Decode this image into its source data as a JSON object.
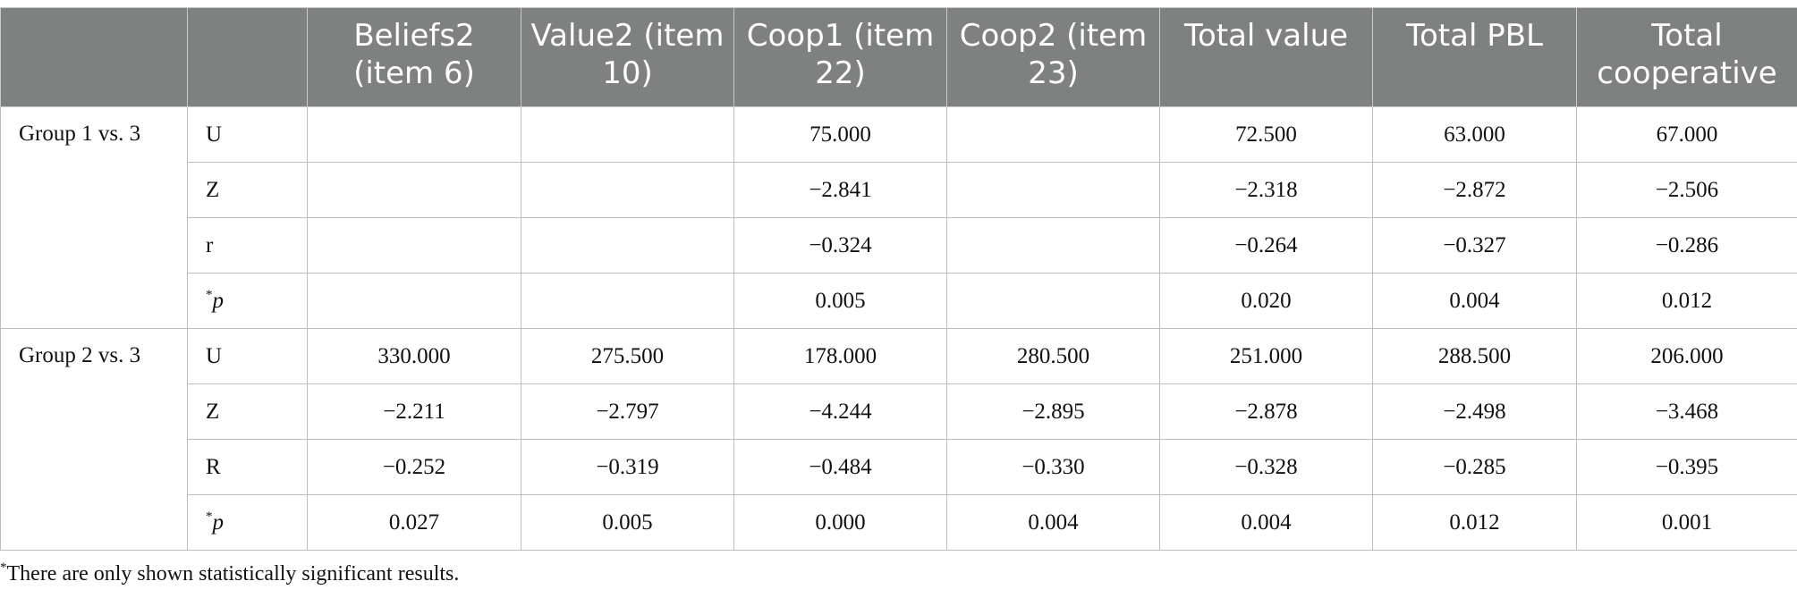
{
  "table": {
    "headers": [
      "",
      "",
      "Beliefs2 (item 6)",
      "Value2 (item 10)",
      "Coop1 (item 22)",
      "Coop2 (item 23)",
      "Total value",
      "Total PBL",
      "Total cooperative"
    ],
    "groups": [
      {
        "label": "Group 1 vs. 3",
        "rows": [
          {
            "stat": "U",
            "values": [
              "",
              "",
              "75.000",
              "",
              "72.500",
              "63.000",
              "67.000"
            ]
          },
          {
            "stat": "Z",
            "values": [
              "",
              "",
              "−2.841",
              "",
              "−2.318",
              "−2.872",
              "−2.506"
            ]
          },
          {
            "stat": "r",
            "values": [
              "",
              "",
              "−0.324",
              "",
              "−0.264",
              "−0.327",
              "−0.286"
            ]
          },
          {
            "stat": "*p",
            "values": [
              "",
              "",
              "0.005",
              "",
              "0.020",
              "0.004",
              "0.012"
            ]
          }
        ]
      },
      {
        "label": "Group 2 vs. 3",
        "rows": [
          {
            "stat": "U",
            "values": [
              "330.000",
              "275.500",
              "178.000",
              "280.500",
              "251.000",
              "288.500",
              "206.000"
            ]
          },
          {
            "stat": "Z",
            "values": [
              "−2.211",
              "−2.797",
              "−4.244",
              "−2.895",
              "−2.878",
              "−2.498",
              "−3.468"
            ]
          },
          {
            "stat": "R",
            "values": [
              "−0.252",
              "−0.319",
              "−0.484",
              "−0.330",
              "−0.328",
              "−0.285",
              "−0.395"
            ]
          },
          {
            "stat": "*p",
            "values": [
              "0.027",
              "0.005",
              "0.000",
              "0.004",
              "0.004",
              "0.012",
              "0.001"
            ]
          }
        ]
      }
    ]
  },
  "footnote": {
    "marker": "*",
    "text": "There are only shown statistically significant results."
  }
}
